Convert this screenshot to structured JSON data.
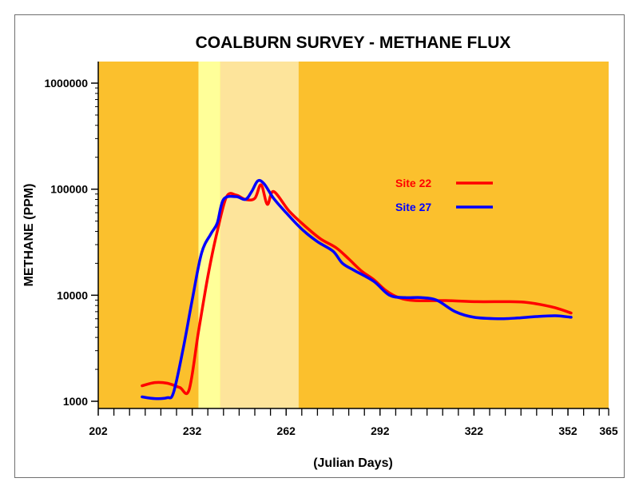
{
  "chart_data": {
    "type": "line",
    "title": "COALBURN SURVEY - METHANE FLUX",
    "xlabel": "(Julian Days)",
    "ylabel": "METHANE (PPM)",
    "xlim": [
      202,
      365
    ],
    "ylim": [
      1000,
      1000000
    ],
    "yscale": "log",
    "x_tick_labels": [
      "202",
      "232",
      "262",
      "292",
      "322",
      "352",
      "365"
    ],
    "y_tick_labels": [
      "1000",
      "10000",
      "100000",
      "1000000"
    ],
    "grid": false,
    "legend_position": "right",
    "background_color": "#FBC02D",
    "shaded_bands": [
      {
        "x_start": 234,
        "x_end": 241,
        "color": "#FFFF99"
      },
      {
        "x_start": 241,
        "x_end": 266,
        "color": "#FDE49B"
      }
    ],
    "series": [
      {
        "name": "Site 22",
        "color": "#FF0000",
        "points": [
          [
            216,
            1400
          ],
          [
            220,
            1500
          ],
          [
            224,
            1480
          ],
          [
            228,
            1350
          ],
          [
            231,
            1280
          ],
          [
            234,
            4500
          ],
          [
            237,
            15000
          ],
          [
            240,
            40000
          ],
          [
            243,
            85000
          ],
          [
            246,
            88000
          ],
          [
            249,
            80000
          ],
          [
            252,
            82000
          ],
          [
            254,
            110000
          ],
          [
            256,
            72000
          ],
          [
            258,
            95000
          ],
          [
            263,
            62000
          ],
          [
            268,
            45000
          ],
          [
            273,
            34000
          ],
          [
            278,
            28000
          ],
          [
            282,
            22000
          ],
          [
            286,
            17000
          ],
          [
            290,
            14000
          ],
          [
            294,
            11000
          ],
          [
            298,
            9500
          ],
          [
            303,
            8900
          ],
          [
            313,
            8900
          ],
          [
            323,
            8700
          ],
          [
            333,
            8700
          ],
          [
            338,
            8600
          ],
          [
            343,
            8200
          ],
          [
            348,
            7600
          ],
          [
            353,
            6800
          ]
        ]
      },
      {
        "name": "Site 27",
        "color": "#0000FF",
        "points": [
          [
            216,
            1100
          ],
          [
            220,
            1060
          ],
          [
            224,
            1080
          ],
          [
            226,
            1200
          ],
          [
            229,
            3000
          ],
          [
            232,
            9000
          ],
          [
            235,
            25000
          ],
          [
            238,
            38000
          ],
          [
            240,
            48000
          ],
          [
            242,
            80000
          ],
          [
            246,
            85000
          ],
          [
            249,
            80000
          ],
          [
            251,
            95000
          ],
          [
            253,
            120000
          ],
          [
            255,
            112000
          ],
          [
            258,
            82000
          ],
          [
            262,
            60000
          ],
          [
            267,
            42000
          ],
          [
            272,
            32000
          ],
          [
            277,
            26000
          ],
          [
            280,
            20000
          ],
          [
            284,
            17000
          ],
          [
            290,
            13500
          ],
          [
            295,
            10000
          ],
          [
            300,
            9500
          ],
          [
            305,
            9500
          ],
          [
            310,
            9000
          ],
          [
            316,
            7000
          ],
          [
            322,
            6200
          ],
          [
            330,
            6000
          ],
          [
            336,
            6100
          ],
          [
            342,
            6300
          ],
          [
            348,
            6400
          ],
          [
            353,
            6200
          ]
        ]
      }
    ]
  }
}
